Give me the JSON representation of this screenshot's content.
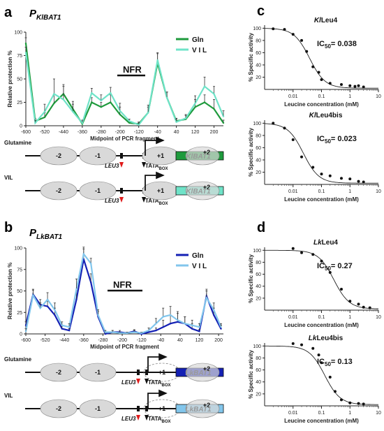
{
  "panels": {
    "a": {
      "letter": "a",
      "title_main": "P",
      "title_sub": "KlBAT1"
    },
    "b": {
      "letter": "b",
      "title_main": "P",
      "title_sub": "LkBAT1"
    },
    "c": {
      "letter": "c"
    },
    "d": {
      "letter": "d"
    }
  },
  "colors": {
    "a_gln": "#1e9a3c",
    "a_vil": "#6fe3c8",
    "b_gln": "#1420b4",
    "b_vil": "#82c6ec",
    "leu3_arrow": "#e01b1b",
    "nucleosome": "#d9d9d9"
  },
  "nfr_label": "NFR",
  "diagrams": {
    "row_labels": [
      "Glutamine",
      "VIL"
    ],
    "nuc_labels": [
      "-2",
      "-1",
      "+1",
      "+2"
    ],
    "leu3": "LEU3",
    "tata": "TATA",
    "tata_sub": "BOX",
    "genes": {
      "a": "KlBAT1",
      "b": "LkBAT1"
    }
  },
  "chart_data": [
    {
      "panel": "a",
      "type": "line",
      "xlabel": "Midpoint of PCR fragment",
      "ylabel": "Relative protection %",
      "xlim": [
        -600,
        240
      ],
      "ylim": [
        0,
        100
      ],
      "xticks": [
        -600,
        -520,
        -440,
        -360,
        -280,
        -200,
        -120,
        -40,
        40,
        120,
        200
      ],
      "yticks": [
        0,
        25,
        50,
        75,
        100
      ],
      "legend_position": "top-right",
      "grid": false,
      "series": [
        {
          "name": "Gln",
          "color": "#1e9a3c",
          "x": [
            -600,
            -560,
            -520,
            -480,
            -440,
            -400,
            -360,
            -320,
            -280,
            -240,
            -200,
            -160,
            -120,
            -80,
            -40,
            0,
            40,
            80,
            120,
            160,
            200,
            240
          ],
          "y": [
            88,
            5,
            9,
            24,
            34,
            18,
            2,
            25,
            20,
            25,
            12,
            3,
            2,
            14,
            67,
            30,
            5,
            7,
            20,
            25,
            18,
            3
          ],
          "err": [
            6,
            3,
            5,
            10,
            10,
            8,
            2,
            5,
            5,
            8,
            8,
            2,
            2,
            6,
            10,
            6,
            3,
            4,
            8,
            8,
            10,
            3
          ]
        },
        {
          "name": "V I L",
          "color": "#6fe3c8",
          "x": [
            -600,
            -560,
            -520,
            -480,
            -440,
            -400,
            -360,
            -320,
            -280,
            -240,
            -200,
            -160,
            -120,
            -80,
            -40,
            0,
            40,
            80,
            120,
            160,
            200,
            240
          ],
          "y": [
            78,
            3,
            15,
            34,
            28,
            15,
            3,
            35,
            27,
            35,
            16,
            5,
            1,
            14,
            70,
            30,
            4,
            8,
            24,
            42,
            34,
            10
          ],
          "err": [
            6,
            3,
            8,
            16,
            14,
            8,
            3,
            5,
            6,
            6,
            8,
            2,
            2,
            8,
            8,
            6,
            3,
            4,
            8,
            10,
            8,
            6
          ]
        }
      ]
    },
    {
      "panel": "b",
      "type": "line",
      "xlabel": "Midpoint of PCR fragment",
      "ylabel": "Relative protection %",
      "xlim": [
        -600,
        220
      ],
      "ylim": [
        0,
        100
      ],
      "xticks": [
        -600,
        -520,
        -440,
        -360,
        -280,
        -200,
        -120,
        -40,
        40,
        120,
        200
      ],
      "yticks": [
        0,
        25,
        50,
        75,
        100
      ],
      "legend_position": "top-right",
      "grid": false,
      "series": [
        {
          "name": "Gln",
          "color": "#1420b4",
          "x": [
            -600,
            -570,
            -540,
            -510,
            -480,
            -450,
            -420,
            -390,
            -360,
            -330,
            -300,
            -270,
            -240,
            -210,
            -180,
            -150,
            -120,
            -90,
            -60,
            -30,
            0,
            30,
            60,
            90,
            120,
            150,
            180,
            210
          ],
          "y": [
            10,
            46,
            34,
            32,
            22,
            6,
            4,
            40,
            87,
            60,
            20,
            0,
            2,
            2,
            1,
            3,
            0,
            2,
            4,
            8,
            12,
            14,
            12,
            6,
            3,
            44,
            22,
            6
          ],
          "err": [
            4,
            6,
            6,
            6,
            8,
            3,
            2,
            10,
            12,
            10,
            6,
            1,
            2,
            2,
            1,
            2,
            1,
            2,
            3,
            8,
            10,
            10,
            8,
            6,
            2,
            8,
            8,
            4
          ]
        },
        {
          "name": "V I L",
          "color": "#82c6ec",
          "x": [
            -600,
            -570,
            -540,
            -510,
            -480,
            -450,
            -420,
            -390,
            -360,
            -330,
            -300,
            -270,
            -240,
            -210,
            -180,
            -150,
            -120,
            -90,
            -60,
            -30,
            0,
            30,
            60,
            90,
            120,
            150,
            180,
            210
          ],
          "y": [
            3,
            45,
            30,
            40,
            28,
            10,
            8,
            52,
            93,
            82,
            22,
            2,
            2,
            1,
            1,
            2,
            1,
            4,
            12,
            20,
            22,
            16,
            12,
            10,
            8,
            42,
            28,
            8
          ],
          "err": [
            3,
            6,
            6,
            8,
            8,
            4,
            4,
            12,
            8,
            6,
            6,
            2,
            2,
            1,
            1,
            2,
            1,
            3,
            6,
            10,
            10,
            10,
            8,
            6,
            4,
            8,
            8,
            4
          ]
        }
      ]
    },
    {
      "panel": "c1",
      "type": "scatter",
      "title": "KlLeu4",
      "ic50_label": "IC",
      "ic50_sub": "50",
      "ic50_value": "= 0.038",
      "ic50": 0.038,
      "xlabel": "Leucine concentration (mM)",
      "ylabel": "% Specific activity",
      "xscale": "log",
      "xlim": [
        0.001,
        10
      ],
      "ylim": [
        0,
        105
      ],
      "xticks": [
        "0.01",
        "0.1",
        "1",
        "10"
      ],
      "yticks": [
        20,
        40,
        60,
        80,
        100
      ],
      "x": [
        0.002,
        0.005,
        0.01,
        0.02,
        0.03,
        0.05,
        0.08,
        0.1,
        0.2,
        0.5,
        1,
        1.5,
        2,
        3
      ],
      "y": [
        99,
        98,
        90,
        80,
        62,
        37,
        28,
        16,
        10,
        8,
        6,
        5,
        6,
        4
      ]
    },
    {
      "panel": "c2",
      "type": "scatter",
      "title": "KlLeu4bis",
      "ic50_label": "IC",
      "ic50_sub": "50",
      "ic50_value": "= 0.023",
      "ic50": 0.023,
      "xlabel": "Leucine concentration (mM)",
      "ylabel": "% Specific activity",
      "xscale": "log",
      "xlim": [
        0.001,
        10
      ],
      "ylim": [
        0,
        105
      ],
      "xticks": [
        "0.01",
        "0.1",
        "1",
        "10"
      ],
      "yticks": [
        20,
        40,
        60,
        80,
        100
      ],
      "x": [
        0.002,
        0.005,
        0.01,
        0.02,
        0.05,
        0.1,
        0.2,
        0.5,
        1,
        2,
        3
      ],
      "y": [
        100,
        92,
        73,
        45,
        28,
        17,
        14,
        10,
        9,
        5,
        4
      ]
    },
    {
      "panel": "d1",
      "type": "scatter",
      "title": "LkLeu4",
      "ic50_label": "IC",
      "ic50_sub": "50",
      "ic50_value": "= 0.27",
      "ic50": 0.27,
      "xlabel": "Leucine concentration (mM)",
      "ylabel": "% Specific activity",
      "xscale": "log",
      "xlim": [
        0.001,
        10
      ],
      "ylim": [
        0,
        105
      ],
      "xticks": [
        "0.01",
        "0.1",
        "1",
        "10"
      ],
      "yticks": [
        20,
        40,
        60,
        80,
        100
      ],
      "x": [
        0.01,
        0.02,
        0.05,
        0.1,
        0.2,
        0.5,
        1,
        2,
        3,
        5
      ],
      "y": [
        103,
        96,
        93,
        82,
        63,
        35,
        15,
        10,
        5,
        4
      ]
    },
    {
      "panel": "d2",
      "type": "scatter",
      "title": "LkLeu4bis",
      "ic50_label": "IC",
      "ic50_sub": "50",
      "ic50_value": "= 0.13",
      "ic50": 0.13,
      "xlabel": "Leucine concentration (mM)",
      "ylabel": "% Specific activity",
      "xscale": "log",
      "xlim": [
        0.001,
        10
      ],
      "ylim": [
        0,
        105
      ],
      "xticks": [
        "0.01",
        "0.1",
        "1",
        "10"
      ],
      "yticks": [
        20,
        40,
        60,
        80,
        100
      ],
      "x": [
        0.01,
        0.02,
        0.05,
        0.08,
        0.1,
        0.2,
        0.3,
        0.5,
        1,
        2,
        3
      ],
      "y": [
        104,
        102,
        96,
        85,
        72,
        48,
        24,
        10,
        5,
        4,
        3
      ]
    }
  ]
}
